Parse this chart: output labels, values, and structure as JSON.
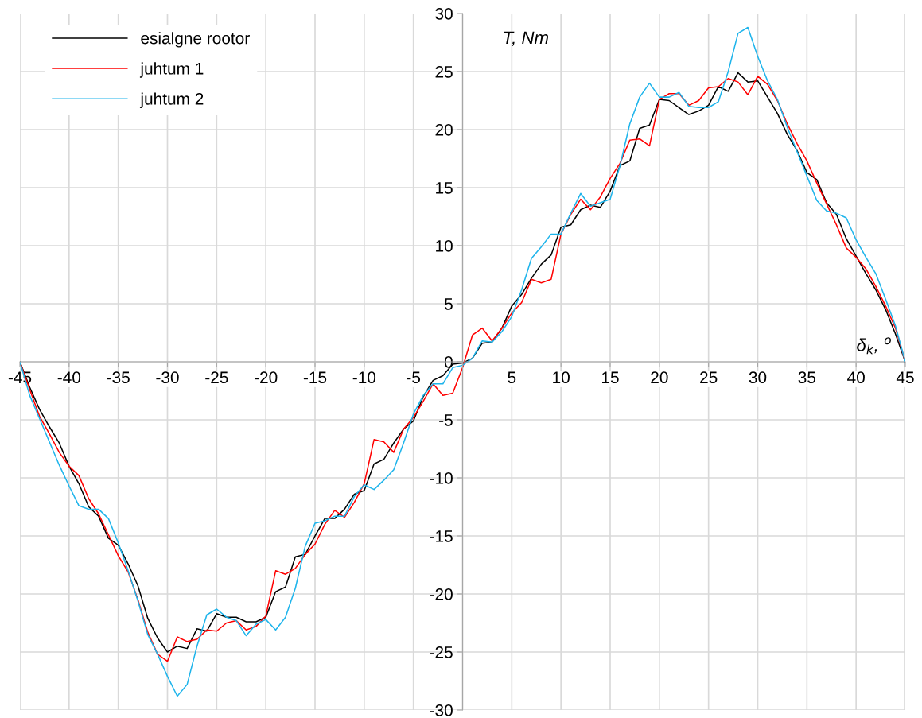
{
  "chart_data": {
    "type": "line",
    "xlabel": "δ$_{k}$, $^{o}$",
    "ylabel": "T, Nm",
    "x": [
      -45,
      -44,
      -43,
      -42,
      -41,
      -40,
      -39,
      -38,
      -37,
      -36,
      -35,
      -34,
      -33,
      -32,
      -31,
      -30,
      -29,
      -28,
      -27,
      -26,
      -25,
      -24,
      -23,
      -22,
      -21,
      -20,
      -19,
      -18,
      -17,
      -16,
      -15,
      -14,
      -13,
      -12,
      -11,
      -10,
      -9,
      -8,
      -7,
      -6,
      -5,
      -4,
      -3,
      -2,
      -1,
      0,
      1,
      2,
      3,
      4,
      5,
      6,
      7,
      8,
      9,
      10,
      11,
      12,
      13,
      14,
      15,
      16,
      17,
      18,
      19,
      20,
      21,
      22,
      23,
      24,
      25,
      26,
      27,
      28,
      29,
      30,
      31,
      32,
      33,
      34,
      35,
      36,
      37,
      38,
      39,
      40,
      41,
      42,
      43,
      44,
      45
    ],
    "series": [
      {
        "name": "esialgne rootor",
        "color": "#000000",
        "values": [
          0,
          -2.2,
          -4.1,
          -5.6,
          -7,
          -9,
          -10.5,
          -12.5,
          -13.3,
          -15.2,
          -15.8,
          -17.4,
          -19.3,
          -22.1,
          -23.8,
          -25,
          -24.5,
          -24.7,
          -23,
          -23.2,
          -21.7,
          -22,
          -22,
          -22.4,
          -22.4,
          -22,
          -19.8,
          -19.4,
          -16.8,
          -16.6,
          -15,
          -13.5,
          -13.5,
          -12.7,
          -11.4,
          -11.1,
          -8.8,
          -8.4,
          -7,
          -5.8,
          -5.1,
          -3,
          -1.6,
          -1.2,
          -0.2,
          -0.1,
          0.3,
          1.6,
          1.7,
          2.9,
          4.8,
          5.8,
          7.2,
          8.4,
          9.2,
          11.6,
          11.8,
          13.1,
          13.5,
          13.3,
          14.7,
          16.9,
          17.3,
          20.1,
          20.4,
          22.6,
          22.5,
          21.9,
          21.3,
          21.6,
          22.1,
          23.7,
          23.3,
          24.9,
          24.1,
          24.2,
          22.8,
          21.4,
          19.6,
          18.2,
          16.3,
          15.7,
          13.7,
          12.7,
          10.6,
          9.1,
          7.6,
          6.2,
          4.5,
          2.4,
          0
        ]
      },
      {
        "name": "juhtum 1",
        "color": "#ff0000",
        "values": [
          0,
          -2.4,
          -4.7,
          -6.2,
          -7.8,
          -9,
          -9.8,
          -11.8,
          -13.1,
          -14.9,
          -16.7,
          -18.1,
          -20.5,
          -23.3,
          -25.2,
          -25.8,
          -23.7,
          -24.1,
          -23.9,
          -23.1,
          -23.2,
          -22.5,
          -22.3,
          -23.1,
          -22.8,
          -21.9,
          -18,
          -18.3,
          -17.8,
          -16.6,
          -15.7,
          -14,
          -12.8,
          -13.4,
          -12.1,
          -10.5,
          -6.7,
          -6.9,
          -7.8,
          -5.8,
          -4.8,
          -3.4,
          -1.9,
          -2.9,
          -2.7,
          -0.5,
          2.3,
          2.9,
          1.8,
          2.9,
          4.2,
          5.1,
          7.1,
          6.8,
          7.1,
          11,
          12.7,
          14,
          13.1,
          14.2,
          15.8,
          17.1,
          19.1,
          19.2,
          18.6,
          22.6,
          23.1,
          23.1,
          22.1,
          22.5,
          23.6,
          23.7,
          24.4,
          24.1,
          23,
          24.6,
          23.9,
          22.5,
          20.5,
          18.8,
          17.3,
          15.4,
          13.6,
          11.8,
          9.8,
          9,
          8,
          6.5,
          4.8,
          2.9,
          0
        ]
      },
      {
        "name": "juhtum 2",
        "color": "#1eb4eb",
        "values": [
          0,
          -2.9,
          -4.9,
          -6.9,
          -8.9,
          -10.7,
          -12.4,
          -12.7,
          -12.7,
          -13.5,
          -15.6,
          -18,
          -20.6,
          -23.5,
          -25.2,
          -27.1,
          -28.8,
          -27.8,
          -24.5,
          -21.8,
          -21.3,
          -22,
          -22.3,
          -23.6,
          -22.6,
          -22.2,
          -23.1,
          -22,
          -19.5,
          -15.9,
          -13.9,
          -13.7,
          -13.3,
          -13.3,
          -11.6,
          -10.6,
          -11,
          -10.2,
          -9.3,
          -7,
          -4.5,
          -2.9,
          -1.9,
          -1.9,
          -0.5,
          -0.3,
          0.3,
          1.8,
          1.7,
          2.6,
          3.9,
          6.2,
          8.9,
          9.9,
          11,
          11,
          12.8,
          14.5,
          13.4,
          13.7,
          14,
          16.9,
          20.5,
          22.8,
          24,
          22.8,
          22.8,
          23.2,
          22,
          21.9,
          21.9,
          22.4,
          25,
          28.3,
          28.8,
          26.3,
          24.2,
          22.6,
          20.2,
          18.1,
          16,
          13.9,
          13,
          12.8,
          12.4,
          10.5,
          9,
          7.6,
          5.4,
          3.1,
          0
        ]
      }
    ],
    "xlim": [
      -45,
      45
    ],
    "xticks": [
      -45,
      -40,
      -35,
      -30,
      -25,
      -20,
      -15,
      -10,
      -5,
      {
        "value": 0,
        "label": null
      },
      5,
      10,
      15,
      20,
      25,
      30,
      35,
      40,
      45
    ],
    "ylim": [
      -30,
      30
    ],
    "yticks": [
      -30,
      -25,
      -20,
      -15,
      -10,
      -5,
      0,
      5,
      10,
      15,
      20,
      25,
      30
    ],
    "grid": true,
    "legend": "top left",
    "line_style": "solid",
    "marker": "none"
  }
}
